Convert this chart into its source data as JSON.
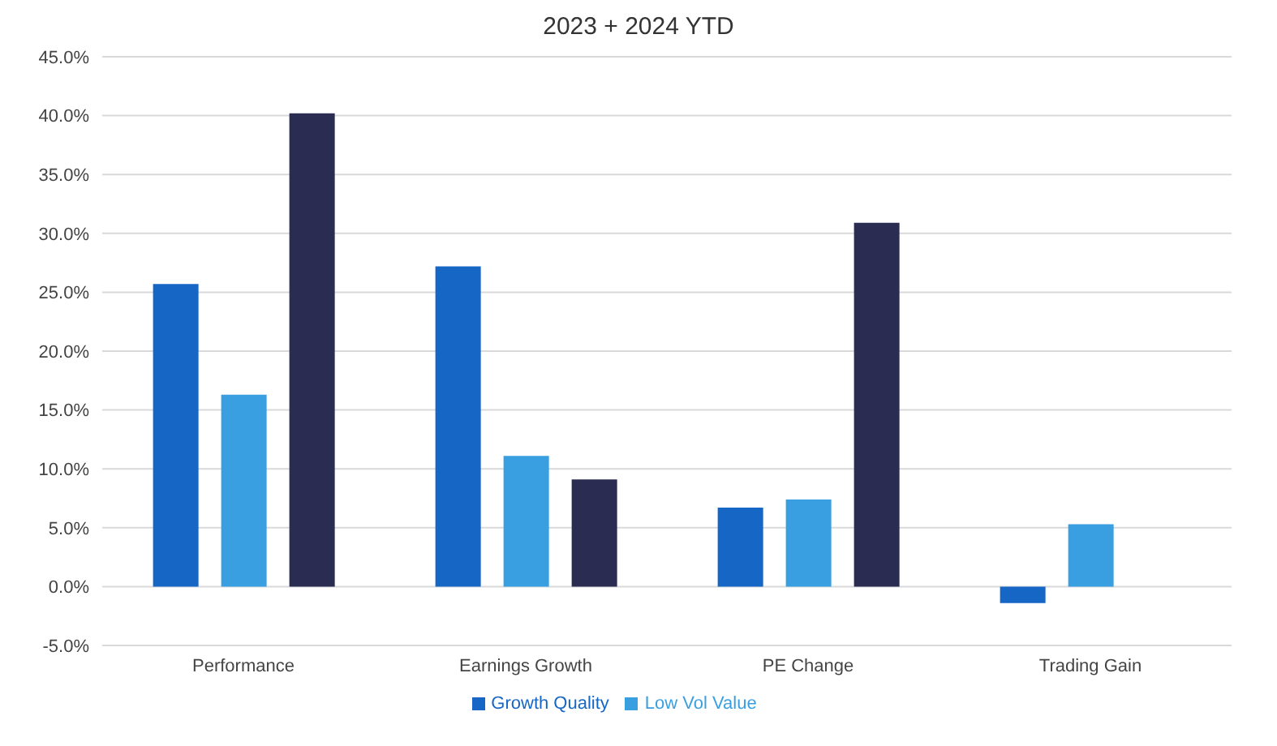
{
  "chart_data": {
    "type": "bar",
    "title": "2023 + 2024 YTD",
    "categories": [
      "Performance",
      "Earnings Growth",
      "PE Change",
      "Trading Gain"
    ],
    "series": [
      {
        "name": "Growth Quality",
        "color": "#1666c5",
        "values": [
          25.7,
          27.2,
          6.7,
          -1.4
        ]
      },
      {
        "name": "Low Vol Value",
        "color": "#3a9fe0",
        "values": [
          16.3,
          11.1,
          7.4,
          5.3
        ]
      },
      {
        "color": "#2a2c52",
        "values": [
          40.2,
          9.1,
          30.9,
          null
        ]
      }
    ],
    "ylim": [
      -5,
      45
    ],
    "yticks": [
      {
        "value": -5,
        "label": "-5.0%"
      },
      {
        "value": 0,
        "label": "0.0%"
      },
      {
        "value": 5,
        "label": "5.0%"
      },
      {
        "value": 10,
        "label": "10.0%"
      },
      {
        "value": 15,
        "label": "15.0%"
      },
      {
        "value": 20,
        "label": "20.0%"
      },
      {
        "value": 25,
        "label": "25.0%"
      },
      {
        "value": 30,
        "label": "30.0%"
      },
      {
        "value": 35,
        "label": "35.0%"
      },
      {
        "value": 40,
        "label": "40.0%"
      },
      {
        "value": 45,
        "label": "45.0%"
      }
    ],
    "grid": "y",
    "legend": "bottom"
  }
}
